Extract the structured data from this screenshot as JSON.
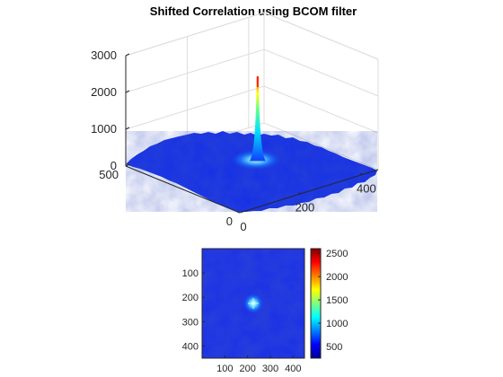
{
  "figure": {
    "title": "Shifted Correlation using BCOM filter"
  },
  "chart_data": [
    {
      "type": "surface",
      "title": "Shifted Correlation using BCOM filter",
      "x_ticks": [
        "0",
        "200",
        "400"
      ],
      "y_ticks": [
        "0",
        "500"
      ],
      "z_ticks": [
        "0",
        "1000",
        "2000",
        "3000"
      ],
      "xlim": [
        0,
        450
      ],
      "ylim": [
        0,
        500
      ],
      "zlim": [
        0,
        3000
      ],
      "base_level": 250,
      "peak": {
        "x": 225,
        "y": 225,
        "z": 2550
      },
      "grid": true,
      "colormap": "jet"
    },
    {
      "type": "heatmap",
      "x_ticks": [
        "100",
        "200",
        "300",
        "400"
      ],
      "y_ticks": [
        "100",
        "200",
        "300",
        "400"
      ],
      "xlim": [
        0,
        450
      ],
      "ylim": [
        0,
        450
      ],
      "peak": {
        "x": 225,
        "y": 225
      },
      "colorbar": {
        "ticks": [
          "500",
          "1000",
          "1500",
          "2000",
          "2500"
        ],
        "range": [
          250,
          2600
        ]
      },
      "colormap": "jet"
    }
  ]
}
